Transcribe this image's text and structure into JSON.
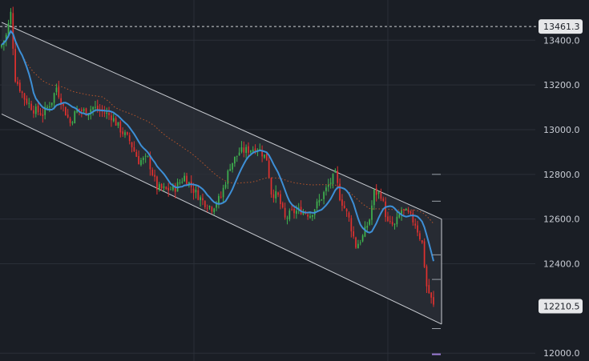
{
  "colors": {
    "background": "#1a1e25",
    "grid": "#2a2f38",
    "up": "#3fb34f",
    "down": "#e0312f",
    "sma_fast": "#3d8fd6",
    "sma_slow": "#b8542a",
    "channel_line": "#c9ccd2",
    "channel_fill": "#2c3038",
    "axis_text": "#c8ccd4",
    "price_tag_bg": "#e6e7e9",
    "ref_line": "#d0d3d8",
    "marker_purple": "#9b7bd4"
  },
  "chart_data": {
    "type": "candlestick",
    "title": "",
    "xlabel": "",
    "ylabel": "",
    "ylim": [
      11965,
      13580
    ],
    "y_ticks": [
      {
        "value": 12000,
        "label": "12000.0"
      },
      {
        "value": 12400,
        "label": "12400.0"
      },
      {
        "value": 12600,
        "label": "12600.0"
      },
      {
        "value": 12800,
        "label": "12800.0"
      },
      {
        "value": 13000,
        "label": "13000.0"
      },
      {
        "value": 13200,
        "label": "13200.0"
      },
      {
        "value": 13400,
        "label": "13400.0"
      }
    ],
    "price_tags": [
      {
        "value": 13461.3,
        "label": "13461.3",
        "dashed_line": true
      },
      {
        "value": 12210.5,
        "label": "12210.5",
        "dashed_line": false
      }
    ],
    "bar_count": 190,
    "series_anchors": [
      {
        "i": 0,
        "close": 13380
      },
      {
        "i": 2,
        "close": 13420
      },
      {
        "i": 4,
        "close": 13520
      },
      {
        "i": 6,
        "close": 13230
      },
      {
        "i": 10,
        "close": 13140
      },
      {
        "i": 14,
        "close": 13090
      },
      {
        "i": 18,
        "close": 13070
      },
      {
        "i": 22,
        "close": 13130
      },
      {
        "i": 24,
        "close": 13190
      },
      {
        "i": 27,
        "close": 13100
      },
      {
        "i": 30,
        "close": 13030
      },
      {
        "i": 33,
        "close": 13090
      },
      {
        "i": 37,
        "close": 13080
      },
      {
        "i": 40,
        "close": 13100
      },
      {
        "i": 44,
        "close": 13080
      },
      {
        "i": 48,
        "close": 13060
      },
      {
        "i": 52,
        "close": 13000
      },
      {
        "i": 56,
        "close": 12950
      },
      {
        "i": 60,
        "close": 12860
      },
      {
        "i": 64,
        "close": 12870
      },
      {
        "i": 68,
        "close": 12740
      },
      {
        "i": 72,
        "close": 12730
      },
      {
        "i": 76,
        "close": 12740
      },
      {
        "i": 80,
        "close": 12790
      },
      {
        "i": 84,
        "close": 12730
      },
      {
        "i": 88,
        "close": 12680
      },
      {
        "i": 92,
        "close": 12650
      },
      {
        "i": 96,
        "close": 12700
      },
      {
        "i": 100,
        "close": 12840
      },
      {
        "i": 104,
        "close": 12900
      },
      {
        "i": 108,
        "close": 12910
      },
      {
        "i": 112,
        "close": 12920
      },
      {
        "i": 116,
        "close": 12870
      },
      {
        "i": 118,
        "close": 12720
      },
      {
        "i": 121,
        "close": 12700
      },
      {
        "i": 124,
        "close": 12600
      },
      {
        "i": 127,
        "close": 12630
      },
      {
        "i": 131,
        "close": 12640
      },
      {
        "i": 135,
        "close": 12620
      },
      {
        "i": 139,
        "close": 12680
      },
      {
        "i": 143,
        "close": 12750
      },
      {
        "i": 146,
        "close": 12800
      },
      {
        "i": 148,
        "close": 12700
      },
      {
        "i": 152,
        "close": 12600
      },
      {
        "i": 155,
        "close": 12480
      },
      {
        "i": 158,
        "close": 12520
      },
      {
        "i": 161,
        "close": 12600
      },
      {
        "i": 163,
        "close": 12720
      },
      {
        "i": 166,
        "close": 12710
      },
      {
        "i": 169,
        "close": 12580
      },
      {
        "i": 172,
        "close": 12570
      },
      {
        "i": 175,
        "close": 12640
      },
      {
        "i": 178,
        "close": 12620
      },
      {
        "i": 181,
        "close": 12580
      },
      {
        "i": 184,
        "close": 12490
      },
      {
        "i": 186,
        "close": 12300
      },
      {
        "i": 189,
        "close": 12210
      }
    ],
    "channel": {
      "upper": [
        {
          "i": 0,
          "value": 13480
        },
        {
          "i": 189,
          "value": 12600
        }
      ],
      "lower": [
        {
          "i": 0,
          "value": 13070
        },
        {
          "i": 189,
          "value": 12130
        }
      ]
    },
    "right_markers": [
      12800,
      12680,
      12440,
      12330,
      12110,
      11995
    ]
  }
}
